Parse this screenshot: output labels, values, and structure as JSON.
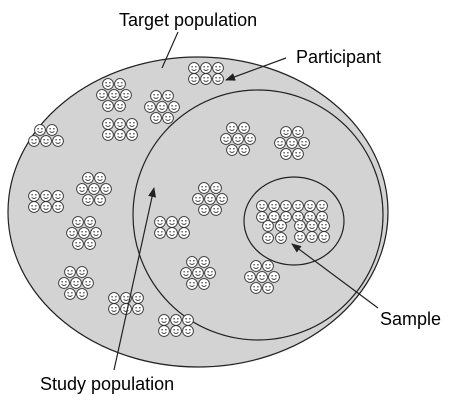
{
  "diagram": {
    "labels": {
      "target_population": "Target population",
      "participant": "Participant",
      "sample": "Sample",
      "study_population": "Study population"
    },
    "colors": {
      "region_fill": "#d3d3d3",
      "outline": "#222222",
      "face_fill": "#ffffff",
      "face_stroke": "#333333",
      "text": "#000000"
    },
    "regions": [
      {
        "name": "target-population-region",
        "level": "outer"
      },
      {
        "name": "study-population-region",
        "level": "middle"
      },
      {
        "name": "sample-region",
        "level": "inner"
      }
    ],
    "icon": "smiley-face-icon"
  }
}
